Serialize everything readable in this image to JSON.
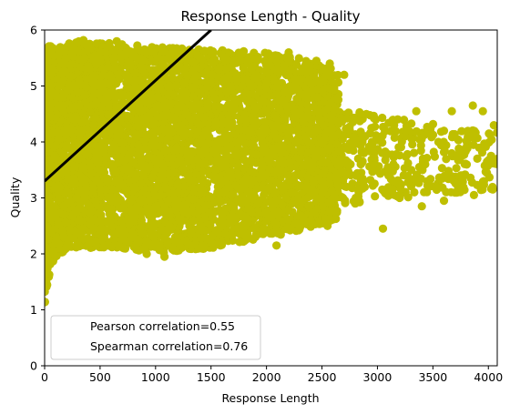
{
  "chart_data": {
    "type": "scatter",
    "title": "Response Length - Quality",
    "xlabel": "Response Length",
    "ylabel": "Quality",
    "xlim": [
      0,
      4080
    ],
    "ylim": [
      0,
      6
    ],
    "x_ticks": [
      "0",
      "500",
      "1000",
      "1500",
      "2000",
      "2500",
      "3000",
      "3500",
      "4000"
    ],
    "y_ticks": [
      "0",
      "1",
      "2",
      "3",
      "4",
      "5",
      "6"
    ],
    "grid": false,
    "legend_position": "lower-left",
    "legend_entries": [
      "Pearson correlation=0.55",
      "Spearman correlation=0.76"
    ],
    "point_color": "#bfbf00",
    "line_color": "#000000",
    "trend_line": {
      "x": [
        0,
        1500
      ],
      "y": [
        3.3,
        6.0
      ]
    },
    "envelope": {
      "upper": [
        [
          0,
          5.7
        ],
        [
          300,
          5.8
        ],
        [
          700,
          5.75
        ],
        [
          1000,
          5.7
        ],
        [
          1500,
          5.65
        ],
        [
          2000,
          5.6
        ],
        [
          2300,
          5.5
        ],
        [
          2600,
          5.3
        ],
        [
          2800,
          5.0
        ],
        [
          3000,
          4.6
        ],
        [
          3300,
          4.4
        ],
        [
          3700,
          4.2
        ],
        [
          4080,
          4.0
        ]
      ],
      "lower": [
        [
          0,
          1.0
        ],
        [
          20,
          1.4
        ],
        [
          60,
          1.8
        ],
        [
          120,
          2.0
        ],
        [
          300,
          2.1
        ],
        [
          700,
          2.1
        ],
        [
          1000,
          2.0
        ],
        [
          1500,
          2.1
        ],
        [
          2000,
          2.3
        ],
        [
          2300,
          2.4
        ],
        [
          2600,
          2.6
        ],
        [
          2800,
          2.7
        ],
        [
          3000,
          2.8
        ],
        [
          3300,
          2.9
        ],
        [
          3700,
          3.0
        ],
        [
          4080,
          3.1
        ]
      ]
    },
    "outliers": [
      {
        "x": 3860,
        "y": 4.65
      },
      {
        "x": 3950,
        "y": 4.55
      },
      {
        "x": 4050,
        "y": 4.3
      },
      {
        "x": 3670,
        "y": 4.55
      },
      {
        "x": 3350,
        "y": 4.55
      },
      {
        "x": 4040,
        "y": 3.15
      },
      {
        "x": 3870,
        "y": 3.05
      },
      {
        "x": 3600,
        "y": 2.95
      },
      {
        "x": 3400,
        "y": 2.85
      },
      {
        "x": 3050,
        "y": 2.45
      },
      {
        "x": 2090,
        "y": 2.15
      },
      {
        "x": 1080,
        "y": 1.95
      },
      {
        "x": 920,
        "y": 2.0
      },
      {
        "x": 1970,
        "y": 2.45
      },
      {
        "x": 2550,
        "y": 2.5
      },
      {
        "x": 3200,
        "y": 3.0
      },
      {
        "x": 4000,
        "y": 3.6
      },
      {
        "x": 3800,
        "y": 3.9
      },
      {
        "x": 3550,
        "y": 4.0
      },
      {
        "x": 3250,
        "y": 4.1
      },
      {
        "x": 2900,
        "y": 4.5
      },
      {
        "x": 2700,
        "y": 5.2
      },
      {
        "x": 2570,
        "y": 5.4
      },
      {
        "x": 2450,
        "y": 5.45
      },
      {
        "x": 2200,
        "y": 5.6
      },
      {
        "x": 350,
        "y": 5.82
      },
      {
        "x": 650,
        "y": 5.8
      },
      {
        "x": 3100,
        "y": 3.4
      },
      {
        "x": 3450,
        "y": 3.3
      },
      {
        "x": 3750,
        "y": 3.4
      },
      {
        "x": 2950,
        "y": 4.0
      },
      {
        "x": 3150,
        "y": 4.3
      },
      {
        "x": 3600,
        "y": 4.2
      },
      {
        "x": 3900,
        "y": 3.7
      },
      {
        "x": 2800,
        "y": 2.9
      },
      {
        "x": 2400,
        "y": 2.6
      }
    ]
  }
}
